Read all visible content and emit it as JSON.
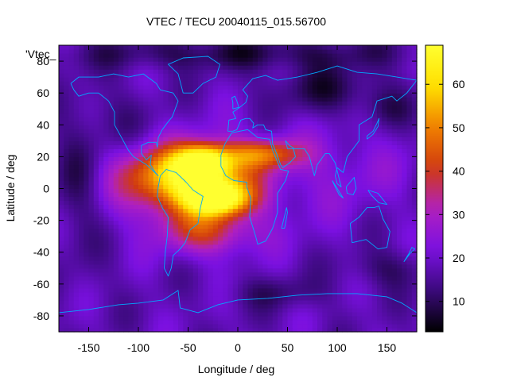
{
  "chart_data": {
    "type": "heatmap",
    "title": "VTEC / TECU 20040115_015.56700",
    "xlabel": "Longitude / deg",
    "ylabel": "Latitude / deg",
    "key_label": "'Vtec_",
    "xlim": [
      -180,
      180
    ],
    "ylim": [
      -90,
      90
    ],
    "zlim": [
      3,
      69
    ],
    "x_ticks": [
      -150,
      -100,
      -50,
      0,
      50,
      100,
      150
    ],
    "y_ticks": [
      -80,
      -60,
      -40,
      -20,
      0,
      20,
      40,
      60,
      80
    ],
    "colorbar_ticks": [
      10,
      20,
      30,
      40,
      50,
      60
    ],
    "colormap": [
      "#000000",
      "#3a0a7a",
      "#7a10e0",
      "#b020c0",
      "#d03a10",
      "#f08000",
      "#ffe000",
      "#ffff30"
    ],
    "coastline_color": "#00aaff",
    "grid": false,
    "features": [
      {
        "lon": -55,
        "lat": 10,
        "sx": 55,
        "sy": 17,
        "value": 44
      },
      {
        "lon": -50,
        "lat": 0,
        "sx": 60,
        "sy": 22,
        "value": 40
      },
      {
        "lon": -20,
        "lat": -6,
        "sx": 30,
        "sy": 10,
        "value": 60
      },
      {
        "lon": -35,
        "lat": 17,
        "sx": 25,
        "sy": 10,
        "value": 55
      },
      {
        "lon": 25,
        "lat": 22,
        "sx": 40,
        "sy": 9,
        "value": 42
      },
      {
        "lon": -30,
        "lat": -28,
        "sx": 45,
        "sy": 14,
        "value": 34
      },
      {
        "lon": 0,
        "lat": 5,
        "sx": 110,
        "sy": 35,
        "value": 24
      },
      {
        "lon": 120,
        "lat": 15,
        "sx": 60,
        "sy": 25,
        "value": 22
      },
      {
        "lon": -140,
        "lat": -60,
        "sx": 40,
        "sy": 20,
        "value": 17
      },
      {
        "lon": 0,
        "lat": 85,
        "sx": 180,
        "sy": 10,
        "value": 9
      },
      {
        "lon": 90,
        "lat": 62,
        "sx": 60,
        "sy": 15,
        "value": 9
      },
      {
        "lon": -160,
        "lat": 5,
        "sx": 25,
        "sy": 45,
        "value": 11
      },
      {
        "lon": 150,
        "lat": -50,
        "sx": 40,
        "sy": 12,
        "value": 11
      },
      {
        "lon": 40,
        "lat": -65,
        "sx": 50,
        "sy": 10,
        "value": 12
      },
      {
        "lon": 150,
        "lat": 50,
        "sx": 25,
        "sy": 12,
        "value": 12
      },
      {
        "lon": -120,
        "lat": 45,
        "sx": 40,
        "sy": 20,
        "value": 14
      }
    ],
    "baseline_value": 18
  }
}
